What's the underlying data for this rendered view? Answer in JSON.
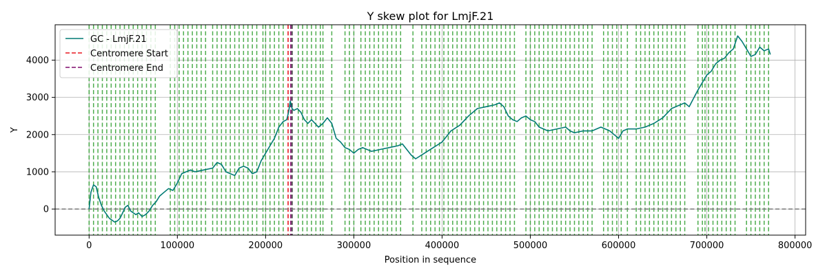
{
  "chart_data": {
    "type": "line",
    "title": "Y skew plot for LmjF.21",
    "xlabel": "Position in sequence",
    "ylabel": "Y",
    "xlim": [
      -38500,
      812000
    ],
    "ylim": [
      -700,
      4950
    ],
    "grid": true,
    "legend_position": "top-left",
    "x_ticks": [
      0,
      100000,
      200000,
      300000,
      400000,
      500000,
      600000,
      700000,
      800000
    ],
    "x_tick_labels": [
      "0",
      "100000",
      "200000",
      "300000",
      "400000",
      "500000",
      "600000",
      "700000",
      "800000"
    ],
    "y_ticks": [
      0,
      1000,
      2000,
      3000,
      4000
    ],
    "y_tick_labels": [
      "0",
      "1000",
      "2000",
      "3000",
      "4000"
    ],
    "series": [
      {
        "name": "GC - LmjF.21",
        "color": "#007a73",
        "x": [
          0,
          2000,
          5000,
          8000,
          11000,
          14000,
          17000,
          20000,
          23000,
          26000,
          29000,
          32000,
          35000,
          38000,
          41000,
          44000,
          47000,
          50000,
          53000,
          56000,
          60000,
          64000,
          68000,
          72000,
          76000,
          80000,
          85000,
          90000,
          95000,
          100000,
          105000,
          110000,
          115000,
          120000,
          130000,
          140000,
          145000,
          150000,
          155000,
          160000,
          165000,
          170000,
          175000,
          180000,
          185000,
          190000,
          195000,
          200000,
          205000,
          210000,
          215000,
          220000,
          224000,
          226000,
          228000,
          230000,
          232000,
          236000,
          240000,
          244000,
          248000,
          252000,
          256000,
          260000,
          265000,
          270000,
          275000,
          280000,
          285000,
          290000,
          295000,
          300000,
          305000,
          310000,
          320000,
          330000,
          340000,
          350000,
          355000,
          360000,
          365000,
          370000,
          380000,
          390000,
          400000,
          410000,
          420000,
          430000,
          440000,
          450000,
          460000,
          465000,
          470000,
          475000,
          480000,
          485000,
          490000,
          495000,
          500000,
          505000,
          510000,
          520000,
          530000,
          540000,
          545000,
          550000,
          560000,
          570000,
          580000,
          590000,
          595000,
          600000,
          605000,
          610000,
          620000,
          630000,
          640000,
          650000,
          660000,
          670000,
          675000,
          680000,
          690000,
          700000,
          705000,
          710000,
          715000,
          720000,
          725000,
          730000,
          735000,
          740000,
          745000,
          750000,
          755000,
          760000,
          765000,
          770000,
          772000
        ],
        "y": [
          0,
          450,
          650,
          600,
          300,
          100,
          -50,
          -150,
          -250,
          -300,
          -350,
          -320,
          -250,
          -100,
          50,
          100,
          -50,
          -100,
          -150,
          -100,
          -200,
          -150,
          -50,
          100,
          200,
          350,
          450,
          550,
          500,
          700,
          950,
          1000,
          1050,
          1000,
          1050,
          1100,
          1250,
          1200,
          1000,
          950,
          900,
          1100,
          1150,
          1100,
          950,
          1000,
          1300,
          1500,
          1700,
          1900,
          2200,
          2350,
          2400,
          2600,
          2900,
          2700,
          2650,
          2700,
          2600,
          2400,
          2300,
          2400,
          2300,
          2200,
          2300,
          2450,
          2300,
          1900,
          1800,
          1650,
          1600,
          1500,
          1600,
          1650,
          1550,
          1600,
          1650,
          1700,
          1750,
          1600,
          1450,
          1350,
          1500,
          1650,
          1800,
          2100,
          2250,
          2500,
          2700,
          2750,
          2800,
          2850,
          2750,
          2500,
          2400,
          2350,
          2450,
          2500,
          2400,
          2350,
          2200,
          2100,
          2150,
          2200,
          2100,
          2050,
          2100,
          2100,
          2200,
          2100,
          2000,
          1900,
          2100,
          2150,
          2150,
          2200,
          2300,
          2450,
          2700,
          2800,
          2850,
          2750,
          3200,
          3600,
          3700,
          3900,
          4000,
          4050,
          4200,
          4300,
          4650,
          4500,
          4300,
          4100,
          4150,
          4350,
          4250,
          4300,
          4150
        ]
      }
    ],
    "reference_lines": [
      {
        "name": "Centromere Start",
        "axis": "x",
        "value": 225500,
        "color": "#e8171f",
        "style": "dashed"
      },
      {
        "name": "Centromere End",
        "axis": "x",
        "value": 228500,
        "color": "#7f0a6c",
        "style": "dashed"
      },
      {
        "name": "",
        "axis": "x",
        "value": 230000,
        "color": "#333333",
        "style": "dashed"
      },
      {
        "name": "",
        "axis": "y",
        "value": 0,
        "color": "#808080",
        "style": "dashed"
      }
    ],
    "marker_lines": {
      "color": "#2e9e2e",
      "style": "dashed",
      "x": [
        0,
        5000,
        10000,
        15000,
        20000,
        25000,
        30000,
        35000,
        40000,
        45000,
        50000,
        55000,
        60000,
        65000,
        70000,
        75000,
        92000,
        97000,
        102000,
        107000,
        112000,
        117000,
        122000,
        127000,
        132000,
        140000,
        145000,
        150000,
        155000,
        160000,
        165000,
        170000,
        175000,
        180000,
        185000,
        190000,
        197000,
        200000,
        205000,
        210000,
        215000,
        220000,
        237000,
        242000,
        247000,
        252000,
        257000,
        262000,
        265000,
        275000,
        290000,
        295000,
        300000,
        308000,
        313000,
        318000,
        323000,
        328000,
        333000,
        338000,
        343000,
        348000,
        353000,
        367000,
        377000,
        382000,
        387000,
        392000,
        397000,
        402000,
        407000,
        412000,
        417000,
        422000,
        427000,
        432000,
        437000,
        442000,
        447000,
        452000,
        457000,
        462000,
        467000,
        472000,
        477000,
        482000,
        495000,
        500000,
        505000,
        510000,
        515000,
        520000,
        525000,
        530000,
        535000,
        540000,
        545000,
        550000,
        555000,
        560000,
        565000,
        570000,
        583000,
        588000,
        593000,
        598000,
        603000,
        610000,
        620000,
        625000,
        630000,
        635000,
        640000,
        645000,
        650000,
        655000,
        660000,
        665000,
        670000,
        675000,
        690000,
        695000,
        698000,
        702000,
        707000,
        712000,
        717000,
        722000,
        727000,
        732000,
        745000,
        750000,
        755000,
        760000,
        765000,
        770000
      ]
    }
  }
}
